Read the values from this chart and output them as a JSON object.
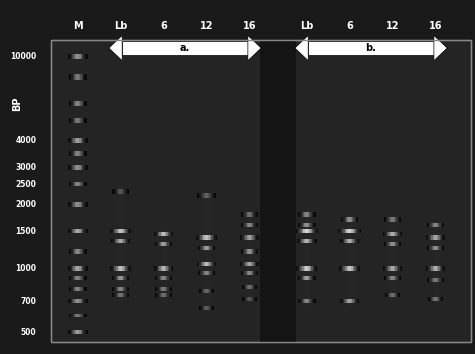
{
  "background_color": "#1a1a1a",
  "gel_bg": "#2a2a2a",
  "lane_labels": [
    "M",
    "Lb",
    "6",
    "12",
    "16",
    "Lb",
    "6",
    "12",
    "16"
  ],
  "bp_labels": [
    "10000",
    "4000",
    "3000",
    "2500",
    "2000",
    "1500",
    "1000",
    "700",
    "500"
  ],
  "bp_values": [
    10000,
    4000,
    3000,
    2500,
    2000,
    1500,
    1000,
    700,
    500
  ],
  "bp_label_left": "BP",
  "arrow_a_label": "a.",
  "arrow_b_label": "b.",
  "figsize": [
    4.75,
    3.54
  ],
  "dpi": 100
}
